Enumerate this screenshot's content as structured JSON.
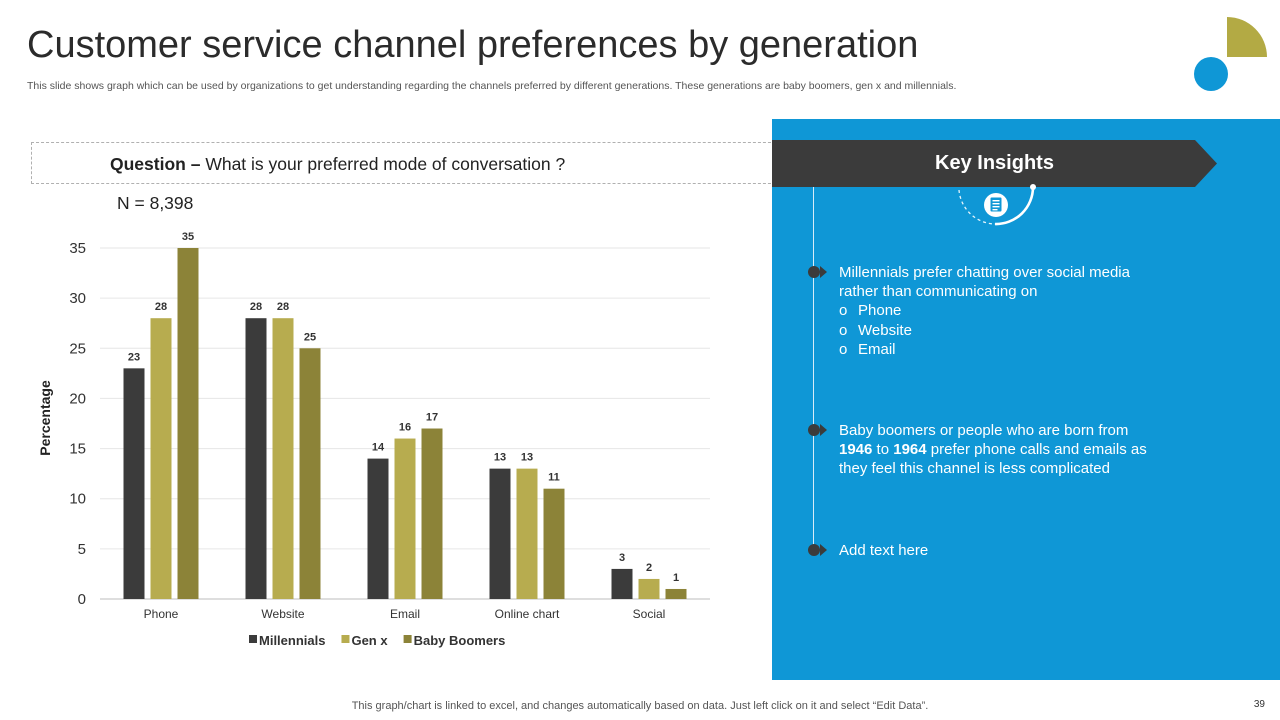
{
  "title": "Customer service channel preferences by generation",
  "subtitle": "This slide shows graph which can be used by organizations to get understanding regarding the channels preferred by different generations. These generations are baby boomers, gen x and millennials.",
  "question": {
    "label": "Question –",
    "text": "What is your preferred mode of conversation ?"
  },
  "sample_size": "N = 8,398",
  "key_insights": {
    "heading": "Key Insights",
    "items": [
      {
        "text": "Millennials prefer chatting over social media rather than communicating on",
        "subitems": [
          "Phone",
          "Website",
          "Email"
        ]
      },
      {
        "text_before": "Baby boomers or people who are born from ",
        "year_start": "1946",
        "text_mid": " to ",
        "year_end": "1964",
        "text_after": " prefer phone calls and emails as they feel this channel is less complicated"
      },
      {
        "text": "Add text here"
      }
    ]
  },
  "footer": "This graph/chart is linked to excel, and changes automatically based on data. Just left click on it and select “Edit Data”.",
  "page_number": "39",
  "colors": {
    "accent_blue": "#0f97d6",
    "accent_olive": "#b3aa44",
    "dark": "#3b3b3b"
  },
  "chart_data": {
    "type": "bar",
    "title": "",
    "xlabel": "",
    "ylabel": "Percentage",
    "ylim": [
      0,
      35
    ],
    "yticks": [
      0,
      5,
      10,
      15,
      20,
      25,
      30,
      35
    ],
    "grid": true,
    "legend_position": "bottom",
    "categories": [
      "Phone",
      "Website",
      "Email",
      "Online chart",
      "Social"
    ],
    "series": [
      {
        "name": "Millennials",
        "color": "#3b3b3b",
        "values": [
          23,
          28,
          14,
          13,
          3
        ]
      },
      {
        "name": "Gen x",
        "color": "#b7ac4f",
        "values": [
          28,
          28,
          16,
          13,
          2
        ]
      },
      {
        "name": "Baby Boomers",
        "color": "#8c8338",
        "values": [
          35,
          25,
          17,
          11,
          1
        ]
      }
    ]
  }
}
